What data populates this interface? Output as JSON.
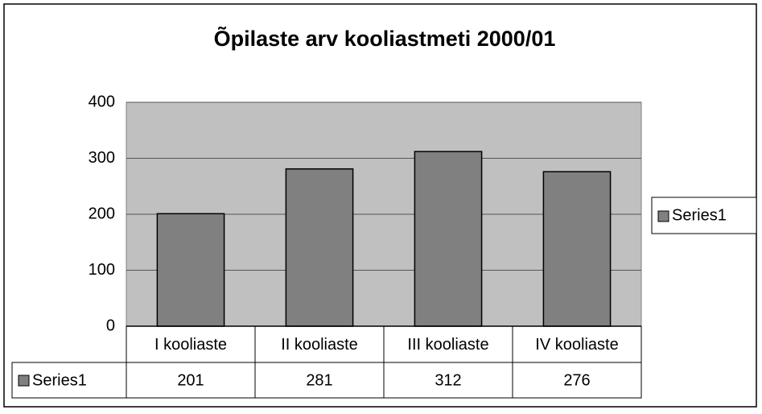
{
  "chart_data": {
    "type": "bar",
    "title": "Õpilaste arv kooliastmeti 2000/01",
    "categories": [
      "I kooliaste",
      "II kooliaste",
      "III kooliaste",
      "IV kooliaste"
    ],
    "series": [
      {
        "name": "Series1",
        "color": "#808080",
        "values": [
          201,
          281,
          312,
          276
        ]
      }
    ],
    "ylim": [
      0,
      400
    ],
    "yticks": [
      0,
      100,
      200,
      300,
      400
    ],
    "grid": true,
    "legend": "right",
    "data_table": true
  }
}
